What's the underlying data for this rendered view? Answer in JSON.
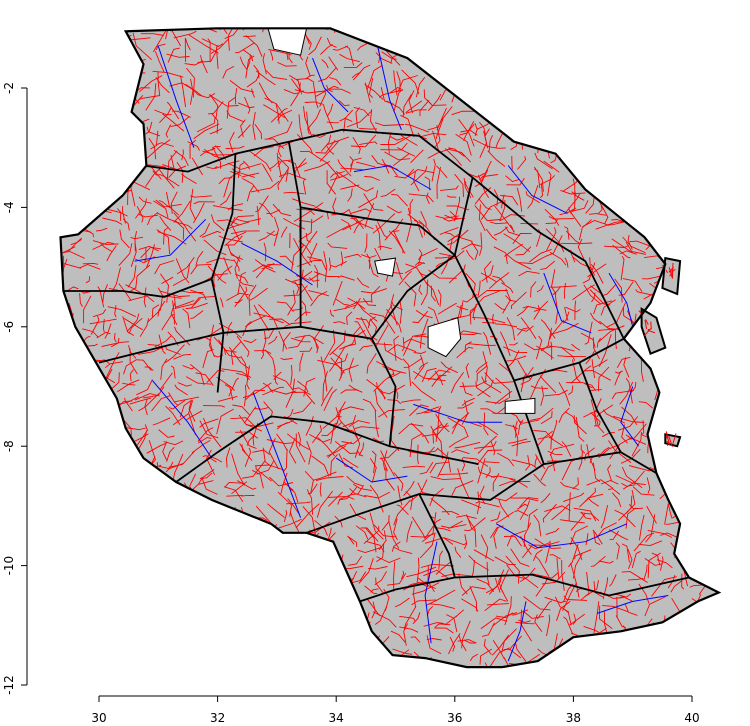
{
  "chart_data": {
    "type": "map",
    "xlim": [
      30,
      40
    ],
    "ylim": [
      -12,
      -1
    ],
    "x_ticks": [
      {
        "value": 30,
        "label": "30"
      },
      {
        "value": 32,
        "label": "32"
      },
      {
        "value": 34,
        "label": "34"
      },
      {
        "value": 36,
        "label": "36"
      },
      {
        "value": 38,
        "label": "38"
      },
      {
        "value": 40,
        "label": "40"
      }
    ],
    "y_ticks": [
      {
        "value": -2,
        "label": "-2"
      },
      {
        "value": -4,
        "label": "-4"
      },
      {
        "value": -6,
        "label": "-6"
      },
      {
        "value": -8,
        "label": "-8"
      },
      {
        "value": -10,
        "label": "-10"
      },
      {
        "value": -12,
        "label": "-12"
      }
    ],
    "colors": {
      "land": "#bebebe",
      "region_border": "#000000",
      "district_border": "#0000ff",
      "ward_border": "#ff0000",
      "water": "#ffffff"
    },
    "country_outline": [
      [
        30.45,
        -1.05
      ],
      [
        32.0,
        -1.0
      ],
      [
        33.9,
        -1.0
      ],
      [
        35.2,
        -1.5
      ],
      [
        37.0,
        -2.9
      ],
      [
        37.7,
        -3.1
      ],
      [
        38.2,
        -3.7
      ],
      [
        39.2,
        -4.5
      ],
      [
        39.55,
        -4.95
      ],
      [
        39.3,
        -5.6
      ],
      [
        38.85,
        -6.2
      ],
      [
        39.3,
        -6.7
      ],
      [
        39.45,
        -7.1
      ],
      [
        39.25,
        -7.8
      ],
      [
        39.4,
        -8.45
      ],
      [
        39.6,
        -8.9
      ],
      [
        39.8,
        -9.3
      ],
      [
        39.7,
        -9.8
      ],
      [
        39.95,
        -10.2
      ],
      [
        40.45,
        -10.45
      ],
      [
        40.1,
        -10.6
      ],
      [
        39.5,
        -10.95
      ],
      [
        38.8,
        -11.1
      ],
      [
        38.0,
        -11.2
      ],
      [
        37.4,
        -11.6
      ],
      [
        36.8,
        -11.7
      ],
      [
        36.2,
        -11.7
      ],
      [
        35.5,
        -11.55
      ],
      [
        34.95,
        -11.5
      ],
      [
        34.6,
        -11.1
      ],
      [
        34.4,
        -10.6
      ],
      [
        33.95,
        -9.6
      ],
      [
        33.5,
        -9.45
      ],
      [
        33.1,
        -9.45
      ],
      [
        32.9,
        -9.3
      ],
      [
        32.4,
        -9.1
      ],
      [
        31.9,
        -8.9
      ],
      [
        31.3,
        -8.6
      ],
      [
        30.75,
        -8.2
      ],
      [
        30.45,
        -7.7
      ],
      [
        30.3,
        -7.2
      ],
      [
        29.95,
        -6.6
      ],
      [
        29.6,
        -6.0
      ],
      [
        29.4,
        -5.4
      ],
      [
        29.35,
        -4.5
      ],
      [
        29.65,
        -4.45
      ],
      [
        30.4,
        -3.8
      ],
      [
        30.8,
        -3.3
      ],
      [
        30.75,
        -2.6
      ],
      [
        30.55,
        -2.4
      ],
      [
        30.75,
        -1.6
      ],
      [
        30.45,
        -1.05
      ]
    ],
    "lakes": [
      [
        [
          32.85,
          -1.0
        ],
        [
          33.5,
          -1.0
        ],
        [
          33.4,
          -1.45
        ],
        [
          32.95,
          -1.35
        ],
        [
          32.85,
          -1.0
        ]
      ],
      [
        [
          34.65,
          -4.9
        ],
        [
          35.0,
          -4.85
        ],
        [
          34.95,
          -5.15
        ],
        [
          34.7,
          -5.1
        ],
        [
          34.65,
          -4.9
        ]
      ],
      [
        [
          35.55,
          -6.0
        ],
        [
          36.05,
          -5.85
        ],
        [
          36.1,
          -6.2
        ],
        [
          35.85,
          -6.5
        ],
        [
          35.55,
          -6.35
        ],
        [
          35.55,
          -6.0
        ]
      ],
      [
        [
          36.85,
          -7.25
        ],
        [
          37.35,
          -7.2
        ],
        [
          37.35,
          -7.45
        ],
        [
          36.85,
          -7.45
        ],
        [
          36.85,
          -7.25
        ]
      ]
    ],
    "islands": [
      [
        [
          39.55,
          -4.85
        ],
        [
          39.8,
          -4.9
        ],
        [
          39.75,
          -5.45
        ],
        [
          39.5,
          -5.35
        ],
        [
          39.55,
          -4.85
        ]
      ],
      [
        [
          39.15,
          -5.7
        ],
        [
          39.4,
          -5.85
        ],
        [
          39.55,
          -6.35
        ],
        [
          39.3,
          -6.45
        ],
        [
          39.15,
          -6.0
        ],
        [
          39.15,
          -5.7
        ]
      ],
      [
        [
          39.55,
          -7.8
        ],
        [
          39.8,
          -7.85
        ],
        [
          39.75,
          -8.0
        ],
        [
          39.55,
          -7.95
        ],
        [
          39.55,
          -7.8
        ]
      ]
    ],
    "region_borders": [
      [
        [
          30.75,
          -3.3
        ],
        [
          31.5,
          -3.4
        ],
        [
          32.3,
          -3.1
        ],
        [
          33.2,
          -2.9
        ],
        [
          34.1,
          -2.7
        ],
        [
          35.4,
          -2.8
        ],
        [
          36.3,
          -3.5
        ]
      ],
      [
        [
          32.3,
          -3.1
        ],
        [
          32.25,
          -4.1
        ],
        [
          31.9,
          -5.2
        ],
        [
          32.1,
          -6.1
        ],
        [
          32.0,
          -7.1
        ]
      ],
      [
        [
          29.4,
          -5.4
        ],
        [
          30.4,
          -5.4
        ],
        [
          31.1,
          -5.5
        ],
        [
          31.9,
          -5.2
        ]
      ],
      [
        [
          30.0,
          -6.6
        ],
        [
          31.2,
          -6.3
        ],
        [
          32.1,
          -6.1
        ],
        [
          33.4,
          -6.0
        ],
        [
          34.6,
          -6.2
        ]
      ],
      [
        [
          31.3,
          -8.6
        ],
        [
          32.0,
          -8.1
        ],
        [
          32.9,
          -7.5
        ],
        [
          33.8,
          -7.6
        ],
        [
          34.9,
          -8.0
        ],
        [
          36.4,
          -8.3
        ]
      ],
      [
        [
          33.5,
          -9.45
        ],
        [
          34.2,
          -9.2
        ],
        [
          35.4,
          -8.8
        ],
        [
          36.6,
          -8.9
        ],
        [
          37.5,
          -8.3
        ],
        [
          38.8,
          -8.1
        ],
        [
          39.4,
          -8.45
        ]
      ],
      [
        [
          34.4,
          -10.6
        ],
        [
          35.0,
          -10.4
        ],
        [
          36.0,
          -10.2
        ],
        [
          37.3,
          -10.15
        ],
        [
          38.6,
          -10.5
        ],
        [
          39.95,
          -10.2
        ]
      ],
      [
        [
          35.4,
          -8.8
        ],
        [
          35.9,
          -9.8
        ],
        [
          36.0,
          -10.2
        ]
      ],
      [
        [
          36.3,
          -3.5
        ],
        [
          36.0,
          -4.8
        ],
        [
          35.2,
          -5.4
        ],
        [
          34.6,
          -6.2
        ]
      ],
      [
        [
          36.3,
          -3.5
        ],
        [
          37.4,
          -4.4
        ],
        [
          38.2,
          -4.9
        ],
        [
          38.85,
          -6.2
        ]
      ],
      [
        [
          36.0,
          -4.8
        ],
        [
          36.5,
          -5.8
        ],
        [
          37.0,
          -6.9
        ],
        [
          37.5,
          -8.3
        ]
      ],
      [
        [
          37.0,
          -6.9
        ],
        [
          38.1,
          -6.6
        ],
        [
          38.85,
          -6.2
        ]
      ],
      [
        [
          38.1,
          -6.6
        ],
        [
          38.4,
          -7.4
        ],
        [
          38.8,
          -8.1
        ]
      ],
      [
        [
          34.6,
          -6.2
        ],
        [
          35.0,
          -7.0
        ],
        [
          34.9,
          -8.0
        ]
      ],
      [
        [
          33.2,
          -2.9
        ],
        [
          33.4,
          -4.0
        ],
        [
          33.4,
          -6.0
        ]
      ],
      [
        [
          33.4,
          -4.0
        ],
        [
          34.6,
          -4.2
        ],
        [
          35.4,
          -4.3
        ],
        [
          36.0,
          -4.8
        ]
      ]
    ],
    "district_borders": [
      [
        [
          31.0,
          -1.3
        ],
        [
          31.3,
          -2.2
        ],
        [
          31.6,
          -3.0
        ]
      ],
      [
        [
          31.8,
          -4.2
        ],
        [
          31.2,
          -4.8
        ],
        [
          30.6,
          -4.9
        ]
      ],
      [
        [
          30.9,
          -6.9
        ],
        [
          31.5,
          -7.6
        ],
        [
          31.9,
          -8.2
        ]
      ],
      [
        [
          32.6,
          -7.1
        ],
        [
          33.1,
          -8.4
        ],
        [
          33.4,
          -9.2
        ]
      ],
      [
        [
          34.7,
          -1.3
        ],
        [
          34.9,
          -2.2
        ],
        [
          35.1,
          -2.7
        ]
      ],
      [
        [
          35.6,
          -3.7
        ],
        [
          34.9,
          -3.3
        ],
        [
          34.3,
          -3.4
        ]
      ],
      [
        [
          36.9,
          -3.3
        ],
        [
          37.3,
          -3.8
        ],
        [
          37.9,
          -4.1
        ]
      ],
      [
        [
          37.5,
          -5.1
        ],
        [
          37.8,
          -5.9
        ],
        [
          38.3,
          -6.1
        ]
      ],
      [
        [
          35.3,
          -7.3
        ],
        [
          36.2,
          -7.6
        ],
        [
          36.8,
          -7.6
        ]
      ],
      [
        [
          36.7,
          -9.3
        ],
        [
          37.4,
          -9.7
        ],
        [
          38.2,
          -9.6
        ],
        [
          38.9,
          -9.3
        ]
      ],
      [
        [
          35.7,
          -9.6
        ],
        [
          35.5,
          -10.5
        ],
        [
          35.6,
          -11.3
        ]
      ],
      [
        [
          37.2,
          -10.6
        ],
        [
          37.1,
          -11.1
        ],
        [
          36.9,
          -11.6
        ]
      ],
      [
        [
          38.4,
          -10.8
        ],
        [
          39.0,
          -10.6
        ],
        [
          39.6,
          -10.5
        ]
      ],
      [
        [
          32.4,
          -4.6
        ],
        [
          33.0,
          -4.9
        ],
        [
          33.6,
          -5.3
        ]
      ],
      [
        [
          38.6,
          -5.1
        ],
        [
          38.9,
          -5.6
        ],
        [
          39.0,
          -6.0
        ]
      ],
      [
        [
          39.0,
          -7.0
        ],
        [
          38.8,
          -7.6
        ],
        [
          39.1,
          -8.0
        ]
      ],
      [
        [
          33.6,
          -1.5
        ],
        [
          33.8,
          -2.0
        ],
        [
          34.2,
          -2.4
        ]
      ],
      [
        [
          34.0,
          -8.2
        ],
        [
          34.6,
          -8.6
        ],
        [
          35.2,
          -8.5
        ]
      ]
    ]
  }
}
